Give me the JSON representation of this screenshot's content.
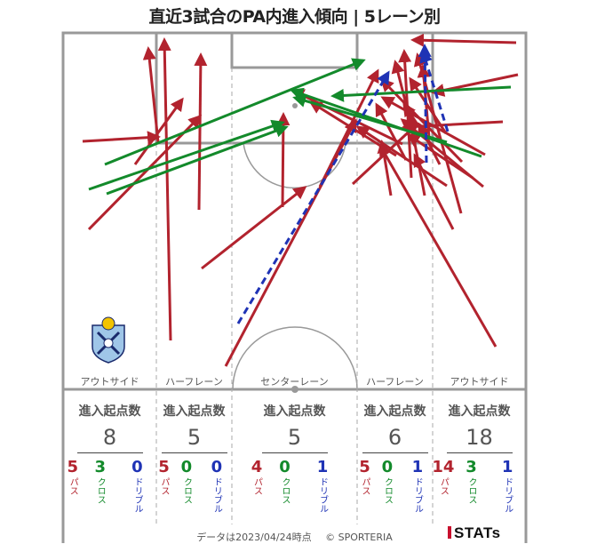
{
  "title": "直近3試合のPA内進入傾向 | 5レーン別",
  "colors": {
    "pass": "#b2232e",
    "cross": "#138a2b",
    "dribble": "#1f33b5",
    "pitch_line": "#999999"
  },
  "chart_data": {
    "type": "flow-map",
    "lanes": [
      {
        "name": "アウトサイド",
        "header": "進入起点数",
        "total": "8",
        "breakdown": [
          {
            "value": "5",
            "label": "パス"
          },
          {
            "value": "3",
            "label": "クロス"
          },
          {
            "value": "0",
            "label": "ドリブル"
          }
        ]
      },
      {
        "name": "ハーフレーン",
        "header": "進入起点数",
        "total": "5",
        "breakdown": [
          {
            "value": "5",
            "label": "パス"
          },
          {
            "value": "0",
            "label": "クロス"
          },
          {
            "value": "0",
            "label": "ドリブル"
          }
        ]
      },
      {
        "name": "センターレーン",
        "header": "進入起点数",
        "total": "5",
        "breakdown": [
          {
            "value": "4",
            "label": "パス"
          },
          {
            "value": "0",
            "label": "クロス"
          },
          {
            "value": "1",
            "label": "ドリブル"
          }
        ]
      },
      {
        "name": "ハーフレーン",
        "header": "進入起点数",
        "total": "6",
        "breakdown": [
          {
            "value": "5",
            "label": "パス"
          },
          {
            "value": "0",
            "label": "クロス"
          },
          {
            "value": "1",
            "label": "ドリブル"
          }
        ]
      },
      {
        "name": "アウトサイド",
        "header": "進入起点数",
        "total": "18",
        "breakdown": [
          {
            "value": "14",
            "label": "パス"
          },
          {
            "value": "3",
            "label": "クロス"
          },
          {
            "value": "1",
            "label": "ドリブル"
          }
        ]
      }
    ]
  },
  "footer": {
    "date": "データは2023/04/24時点",
    "copyright": "© SPORTERIA"
  },
  "brand": "STATs"
}
